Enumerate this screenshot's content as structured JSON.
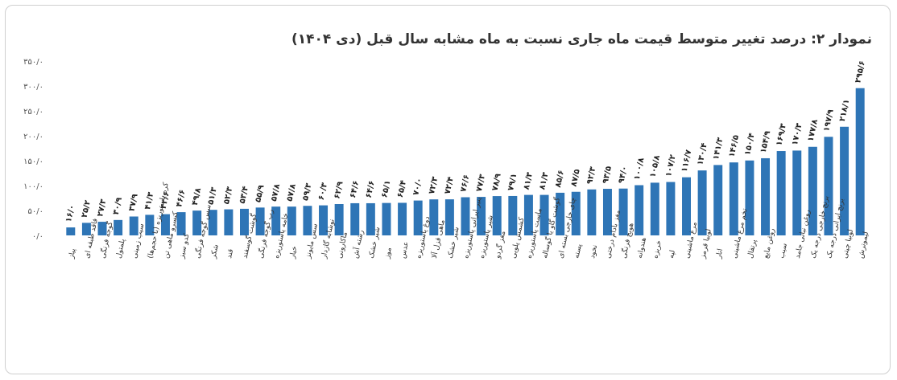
{
  "chart_data": {
    "type": "bar",
    "title": "نمودار ۲: درصد تغییر متوسط قیمت ماه جاری نسبت به ماه مشابه سال قبل (دی ۱۴۰۴)",
    "xlabel": "",
    "ylabel": "",
    "ylim": [
      0,
      350
    ],
    "yticks": [
      0,
      50,
      100,
      150,
      200,
      250,
      300,
      350
    ],
    "ytick_labels": [
      "۰/۰",
      "۵۰/۰",
      "۱۰۰/۰",
      "۱۵۰/۰",
      "۲۰۰/۰",
      "۲۵۰/۰",
      "۳۰۰/۰",
      "۳۵۰/۰"
    ],
    "grid": false,
    "legend": "none",
    "bar_color": "#2e75b6",
    "categories": [
      "پیاز",
      "فاقد طبقه ای",
      "گوجه فرنگی",
      "پلمتول",
      "سیب زمینی",
      "کره پاستوریزه (با حجم‌ها)",
      "کنسرو ماهی تن",
      "کدو سبز",
      "سس گوجه فرنگی",
      "شکر",
      "قند",
      "گوشت گوسفند",
      "رب گوجه فرنگی",
      "خامه پاستوریزه",
      "خیار",
      "سس مایونز",
      "نوشابه گازدار",
      "ماکارونی",
      "رشته آش",
      "شیر خشک",
      "موز",
      "عدس",
      "دوغ پاستوریزه",
      "ماهی قزل آلا",
      "شیر خشک",
      "پنیر ایرانی پاستوریزه",
      "شیر پاستوریزه",
      "مغز گردو",
      "کشمش پلویی",
      "ماست پاستوریزه",
      "گوشت گاو یا گوساله",
      "چای خارجی بسته ای",
      "پسته",
      "نخود",
      "مغز بادام درختی",
      "هویج فرنگی",
      "هندوانه",
      "خربزه",
      "لپه",
      "مرغ ماشینی",
      "لوبیا قرمز",
      "انار",
      "تخم مرغ ماشینی",
      "پرتقال",
      "روغن مایع",
      "سیب",
      "روغن نباتی جامد",
      "برنج خارجی درجه یک",
      "برنج ایرانی درجه یک",
      "لوبیا چیتی",
      "لیموترش"
    ],
    "values": [
      16.0,
      25.2,
      27.3,
      30.9,
      37.9,
      41.3,
      42.6,
      46.6,
      49.8,
      51.3,
      52.3,
      53.4,
      55.9,
      57.8,
      57.8,
      59.3,
      60.3,
      62.9,
      64.6,
      64.6,
      65.1,
      65.4,
      70.0,
      72.3,
      72.4,
      76.6,
      77.3,
      78.9,
      79.1,
      81.3,
      81.3,
      85.6,
      87.5,
      92.3,
      93.5,
      94.0,
      100.8,
      105.8,
      107.2,
      116.7,
      130.4,
      141.3,
      146.5,
      150.4,
      154.9,
      169.3,
      170.3,
      177.8,
      197.9,
      218.1,
      295.6
    ],
    "value_labels": [
      "۱۶/۰",
      "۲۵/۲",
      "۲۷/۳",
      "۳۰/۹",
      "۳۷/۹",
      "۴۱/۳",
      "۴۲/۶",
      "۴۶/۶",
      "۴۹/۸",
      "۵۱/۳",
      "۵۲/۳",
      "۵۳/۴",
      "۵۵/۹",
      "۵۷/۸",
      "۵۷/۸",
      "۵۹/۳",
      "۶۰/۳",
      "۶۲/۹",
      "۶۴/۶",
      "۶۴/۶",
      "۶۵/۱",
      "۶۵/۴",
      "۷۰/۰",
      "۷۲/۳",
      "۷۲/۴",
      "۷۶/۶",
      "۷۷/۳",
      "۷۸/۹",
      "۷۹/۱",
      "۸۱/۳",
      "۸۱/۳",
      "۸۵/۶",
      "۸۷/۵",
      "۹۲/۳",
      "۹۳/۵",
      "۹۴/۰",
      "۱۰۰/۸",
      "۱۰۵/۸",
      "۱۰۷/۲",
      "۱۱۶/۷",
      "۱۳۰/۴",
      "۱۴۱/۳",
      "۱۴۶/۵",
      "۱۵۰/۴",
      "۱۵۴/۹",
      "۱۶۹/۳",
      "۱۷۰/۳",
      "۱۷۷/۸",
      "۱۹۷/۹",
      "۲۱۸/۱",
      "۲۹۵/۶"
    ]
  }
}
